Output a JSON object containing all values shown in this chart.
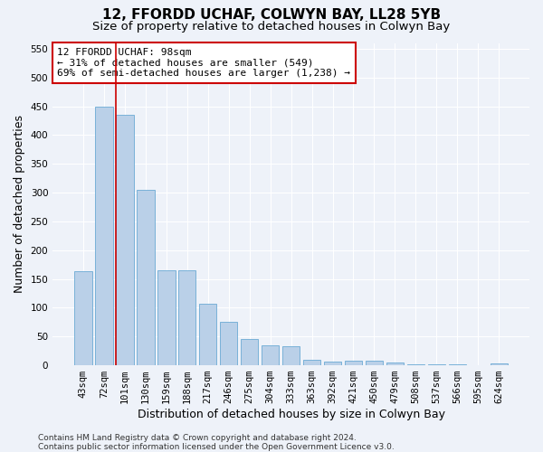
{
  "title": "12, FFORDD UCHAF, COLWYN BAY, LL28 5YB",
  "subtitle": "Size of property relative to detached houses in Colwyn Bay",
  "xlabel": "Distribution of detached houses by size in Colwyn Bay",
  "ylabel": "Number of detached properties",
  "categories": [
    "43sqm",
    "72sqm",
    "101sqm",
    "130sqm",
    "159sqm",
    "188sqm",
    "217sqm",
    "246sqm",
    "275sqm",
    "304sqm",
    "333sqm",
    "363sqm",
    "392sqm",
    "421sqm",
    "450sqm",
    "479sqm",
    "508sqm",
    "537sqm",
    "566sqm",
    "595sqm",
    "624sqm"
  ],
  "values": [
    163,
    450,
    435,
    305,
    165,
    165,
    107,
    75,
    45,
    35,
    33,
    9,
    7,
    8,
    8,
    5,
    2,
    1,
    1,
    0,
    4
  ],
  "bar_color": "#bad0e8",
  "bar_edge_color": "#6aaad4",
  "vline_x": 1.575,
  "vline_color": "#cc0000",
  "annotation_text": "12 FFORDD UCHAF: 98sqm\n← 31% of detached houses are smaller (549)\n69% of semi-detached houses are larger (1,238) →",
  "annotation_box_color": "#ffffff",
  "annotation_box_edge_color": "#cc0000",
  "ylim": [
    0,
    560
  ],
  "yticks": [
    0,
    50,
    100,
    150,
    200,
    250,
    300,
    350,
    400,
    450,
    500,
    550
  ],
  "footer_text": "Contains HM Land Registry data © Crown copyright and database right 2024.\nContains public sector information licensed under the Open Government Licence v3.0.",
  "background_color": "#eef2f9",
  "grid_color": "#ffffff",
  "title_fontsize": 11,
  "subtitle_fontsize": 9.5,
  "axis_label_fontsize": 9,
  "tick_fontsize": 7.5,
  "annotation_fontsize": 8,
  "footer_fontsize": 6.5
}
